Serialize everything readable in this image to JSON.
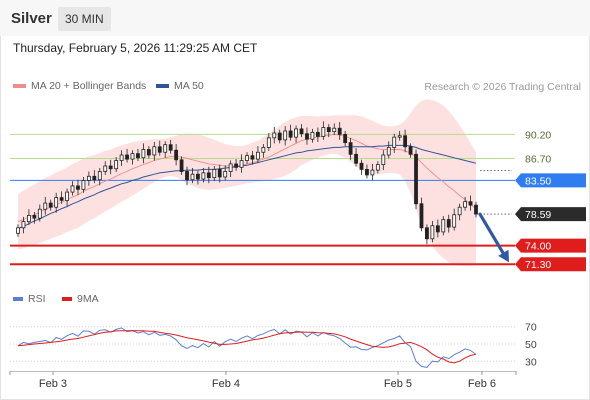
{
  "header": {
    "title": "Silver",
    "timeframe": "30 MIN"
  },
  "datetime": "Thursday, February 5, 2026 11:29:25 AM CET",
  "credit": "Research © 2026 Trading Central",
  "colors": {
    "bollinger": "#f08b8b",
    "ma50": "#2f5596",
    "candle": "#222222",
    "pivot": "#2f7df0",
    "support": "#e01d1d",
    "resistance": "#b6dc8c",
    "rsi": "#5b7fd6",
    "rsi_ma": "#e01d1d",
    "arrow": "#2d59a6"
  },
  "chart_data": [
    {
      "type": "candlestick",
      "legend": [
        "MA 20 + Bollinger Bands",
        "MA 50"
      ],
      "x_ticks": [
        "Feb 3",
        "Feb 4",
        "Feb 5",
        "Feb 6"
      ],
      "ylim": [
        69.0,
        95.5
      ],
      "levels": [
        {
          "value": 90.2,
          "label": "90.20",
          "kind": "resistance"
        },
        {
          "value": 86.7,
          "label": "86.70",
          "kind": "resistance"
        },
        {
          "value": 83.5,
          "label": "83.50",
          "kind": "pivot"
        },
        {
          "value": 78.59,
          "label": "78.59",
          "kind": "last"
        },
        {
          "value": 74.0,
          "label": "74.00",
          "kind": "support"
        },
        {
          "value": 71.3,
          "label": "71.30",
          "kind": "support"
        }
      ],
      "close": [
        76.6,
        77.5,
        78.4,
        78.0,
        79.3,
        80.2,
        79.6,
        81.0,
        80.6,
        81.8,
        82.7,
        82.2,
        83.5,
        84.1,
        83.6,
        84.8,
        85.6,
        85.2,
        86.4,
        87.2,
        86.6,
        87.4,
        86.8,
        88.0,
        87.2,
        88.4,
        87.6,
        88.7,
        87.9,
        86.5,
        84.8,
        83.6,
        84.4,
        83.7,
        84.6,
        83.9,
        85.1,
        84.0,
        84.8,
        85.9,
        85.4,
        86.4,
        87.1,
        86.6,
        87.6,
        88.3,
        89.7,
        90.4,
        89.4,
        90.7,
        89.8,
        91.0,
        90.3,
        89.5,
        90.5,
        89.9,
        91.2,
        90.6,
        91.1,
        90.2,
        89.0,
        87.3,
        86.0,
        85.1,
        84.3,
        85.0,
        85.8,
        87.2,
        88.3,
        89.8,
        90.0,
        88.4,
        87.3,
        80.1,
        76.6,
        75.0,
        76.9,
        76.0,
        77.8,
        76.7,
        78.5,
        79.6,
        80.4,
        79.9,
        78.6
      ],
      "ma20": [
        77.5,
        77.8,
        78.2,
        78.5,
        78.9,
        79.3,
        79.6,
        80.0,
        80.3,
        80.7,
        81.1,
        81.4,
        81.9,
        82.3,
        82.6,
        83.0,
        83.4,
        83.7,
        84.1,
        84.5,
        84.8,
        85.2,
        85.5,
        85.8,
        86.1,
        86.4,
        86.6,
        86.8,
        87.0,
        87.0,
        86.9,
        86.7,
        86.5,
        86.3,
        86.1,
        85.9,
        85.8,
        85.7,
        85.6,
        85.6,
        85.6,
        85.7,
        85.9,
        86.1,
        86.3,
        86.6,
        86.9,
        87.3,
        87.7,
        88.1,
        88.5,
        88.9,
        89.3,
        89.5,
        89.7,
        89.8,
        90.0,
        90.1,
        90.2,
        90.1,
        89.9,
        89.6,
        89.3,
        88.9,
        88.5,
        88.3,
        88.1,
        88.0,
        88.0,
        88.0,
        88.0,
        87.8,
        87.5,
        86.9,
        86.1,
        85.3,
        84.6,
        83.9,
        83.3,
        82.6,
        82.0,
        81.3,
        80.7,
        80.0,
        79.4
      ],
      "bb_width": [
        4.0,
        4.2,
        4.3,
        4.4,
        4.5,
        4.6,
        4.6,
        4.7,
        4.7,
        4.7,
        4.8,
        4.8,
        4.8,
        4.7,
        4.6,
        4.5,
        4.4,
        4.3,
        4.2,
        4.1,
        4.0,
        3.9,
        3.7,
        3.5,
        3.3,
        3.1,
        2.9,
        2.8,
        2.8,
        3.0,
        3.3,
        3.6,
        3.8,
        3.9,
        3.9,
        3.8,
        3.6,
        3.4,
        3.2,
        3.0,
        2.9,
        2.8,
        2.8,
        2.9,
        3.0,
        3.2,
        3.4,
        3.6,
        3.8,
        3.9,
        3.9,
        3.8,
        3.6,
        3.4,
        3.2,
        3.0,
        2.9,
        2.8,
        2.8,
        2.9,
        3.1,
        3.4,
        3.7,
        3.9,
        4.0,
        3.9,
        3.7,
        3.5,
        3.4,
        3.4,
        3.6,
        4.4,
        5.8,
        7.5,
        9.0,
        10.0,
        10.6,
        11.0,
        11.1,
        11.0,
        10.7,
        10.2,
        9.6,
        8.9,
        8.2
      ],
      "ma50": [
        76.5,
        76.8,
        77.2,
        77.6,
        77.9,
        78.3,
        78.7,
        79.0,
        79.4,
        79.7,
        80.1,
        80.4,
        80.8,
        81.1,
        81.4,
        81.8,
        82.1,
        82.4,
        82.7,
        83.0,
        83.2,
        83.5,
        83.7,
        84.0,
        84.2,
        84.4,
        84.6,
        84.7,
        84.8,
        84.9,
        84.9,
        85.0,
        85.0,
        85.0,
        85.1,
        85.1,
        85.1,
        85.2,
        85.3,
        85.4,
        85.5,
        85.6,
        85.7,
        85.9,
        86.1,
        86.3,
        86.5,
        86.7,
        86.9,
        87.1,
        87.3,
        87.5,
        87.6,
        87.8,
        87.9,
        88.0,
        88.1,
        88.2,
        88.3,
        88.3,
        88.4,
        88.4,
        88.4,
        88.4,
        88.4,
        88.4,
        88.5,
        88.5,
        88.6,
        88.6,
        88.6,
        88.6,
        88.5,
        88.3,
        88.0,
        87.8,
        87.6,
        87.4,
        87.2,
        87.0,
        86.8,
        86.6,
        86.4,
        86.2,
        86.0
      ],
      "forecast": {
        "from": 78.59,
        "to": 71.3
      }
    },
    {
      "type": "line",
      "legend": [
        "RSI",
        "9MA"
      ],
      "ylim": [
        20,
        80
      ],
      "y_ticks": [
        70,
        50,
        30
      ],
      "rsi": [
        48.0,
        51.9,
        50.3,
        51.8,
        52.9,
        54.2,
        51.5,
        57.5,
        55.3,
        59.6,
        62.2,
        59.1,
        65.1,
        64.6,
        61.3,
        65.8,
        66.4,
        63.6,
        66.8,
        68.6,
        64.3,
        65.4,
        62.7,
        64.3,
        60.6,
        63.5,
        60.0,
        61.1,
        59.2,
        54.9,
        47.9,
        44.9,
        48.2,
        45.7,
        50.5,
        46.5,
        53.0,
        47.3,
        52.7,
        55.5,
        52.9,
        56.7,
        59.4,
        56.1,
        59.8,
        61.8,
        64.8,
        66.9,
        61.6,
        66.4,
        61.3,
        64.8,
        63.8,
        58.3,
        63.0,
        59.4,
        63.4,
        60.9,
        59.5,
        56.5,
        51.2,
        46.3,
        46.8,
        43.7,
        43.2,
        46.0,
        48.2,
        51.4,
        54.6,
        56.4,
        59.4,
        51.5,
        46.9,
        30.0,
        24.2,
        23.0,
        30.2,
        29.4,
        35.2,
        33.1,
        37.7,
        40.5,
        44.4,
        42.6,
        37.9
      ],
      "rsi_ma": [
        48.0,
        48.6,
        49.3,
        50.0,
        50.6,
        51.2,
        51.8,
        52.6,
        53.4,
        54.6,
        55.7,
        56.4,
        57.9,
        59.4,
        60.7,
        62.3,
        63.6,
        64.2,
        65.1,
        65.3,
        65.3,
        65.5,
        65.3,
        65.3,
        64.8,
        64.7,
        63.4,
        62.4,
        61.5,
        60.4,
        58.8,
        57.2,
        56.1,
        54.9,
        53.6,
        52.2,
        50.9,
        49.5,
        49.5,
        50.0,
        50.6,
        51.8,
        53.4,
        54.7,
        55.6,
        56.8,
        58.4,
        60.3,
        61.9,
        62.8,
        63.2,
        63.6,
        63.9,
        63.6,
        63.6,
        63.0,
        62.8,
        62.2,
        61.6,
        60.2,
        58.3,
        55.6,
        53.5,
        51.3,
        49.3,
        47.5,
        46.7,
        46.1,
        46.6,
        48.2,
        50.4,
        51.0,
        51.9,
        49.7,
        46.9,
        43.3,
        38.3,
        34.8,
        32.7,
        29.4,
        28.2,
        30.1,
        34.0,
        36.7,
        38.2
      ]
    }
  ]
}
